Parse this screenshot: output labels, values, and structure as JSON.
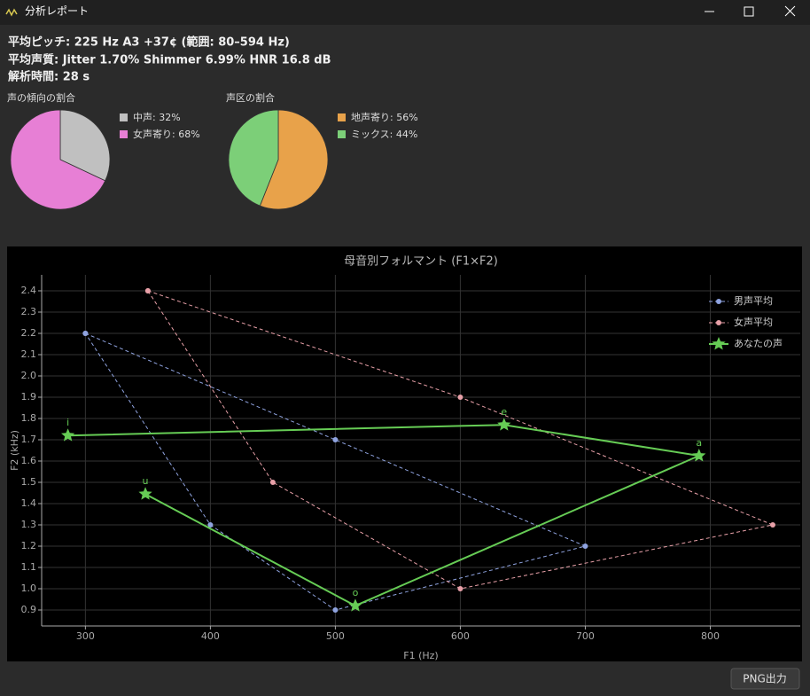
{
  "window": {
    "title": "分析レポート"
  },
  "summary": [
    "平均ピッチ: 225 Hz  A3 +37¢  (範囲: 80–594 Hz)",
    "平均声質:  Jitter 1.70%  Shimmer 6.99%  HNR 16.8 dB",
    "解析時間: 28 s"
  ],
  "button": "PNG出力",
  "chart_data": [
    {
      "type": "pie",
      "title": "声の傾向の割合",
      "values": [
        32,
        68
      ],
      "value_labels": [
        "中声: 32%",
        "女声寄り: 68%"
      ],
      "colors": [
        "#c0c0c0",
        "#e77fd5"
      ]
    },
    {
      "type": "pie",
      "title": "声区の割合",
      "values": [
        56,
        44
      ],
      "value_labels": [
        "地声寄り: 56%",
        "ミックス: 44%"
      ],
      "colors": [
        "#e8a24a",
        "#7ccf78"
      ]
    },
    {
      "type": "line",
      "title": "母音別フォルマント (F1×F2)",
      "x_label": "F1 (Hz)",
      "y_label": "F2 (kHz)",
      "xlim": [
        265,
        872
      ],
      "ylim": [
        0.825,
        2.475
      ],
      "xticks": [
        300,
        400,
        500,
        600,
        700,
        800
      ],
      "yticks": [
        0.9,
        {
          "value": 1.0,
          "label": "1.0"
        },
        1.1,
        1.2,
        1.3,
        1.4,
        1.5,
        1.6,
        1.7,
        1.8,
        1.9,
        {
          "value": 2.0,
          "label": "2.0"
        },
        2.1,
        2.2,
        2.3,
        2.4
      ],
      "grid": true,
      "legend": "upper right",
      "series": [
        {
          "name": "男声平均",
          "color": "#8fa3e0",
          "style": "dashed",
          "marker": "circle",
          "x": [
            300,
            500,
            700,
            500,
            400,
            300
          ],
          "values": [
            2.2,
            1.7,
            1.2,
            0.9,
            1.3,
            2.2
          ]
        },
        {
          "name": "女声平均",
          "color": "#e8a0a8",
          "style": "dashed",
          "marker": "circle",
          "x": [
            350,
            600,
            850,
            600,
            450,
            350
          ],
          "values": [
            2.4,
            1.9,
            1.3,
            1.0,
            1.5,
            2.4
          ]
        },
        {
          "name": "あなたの声",
          "color": "#66cc55",
          "style": "solid",
          "marker": "star",
          "x": [
            286,
            635,
            791,
            516,
            348
          ],
          "values": [
            1.72,
            1.77,
            1.625,
            0.92,
            1.445
          ],
          "point_labels": [
            "i",
            "e",
            "a",
            "o",
            "u"
          ]
        }
      ]
    }
  ]
}
